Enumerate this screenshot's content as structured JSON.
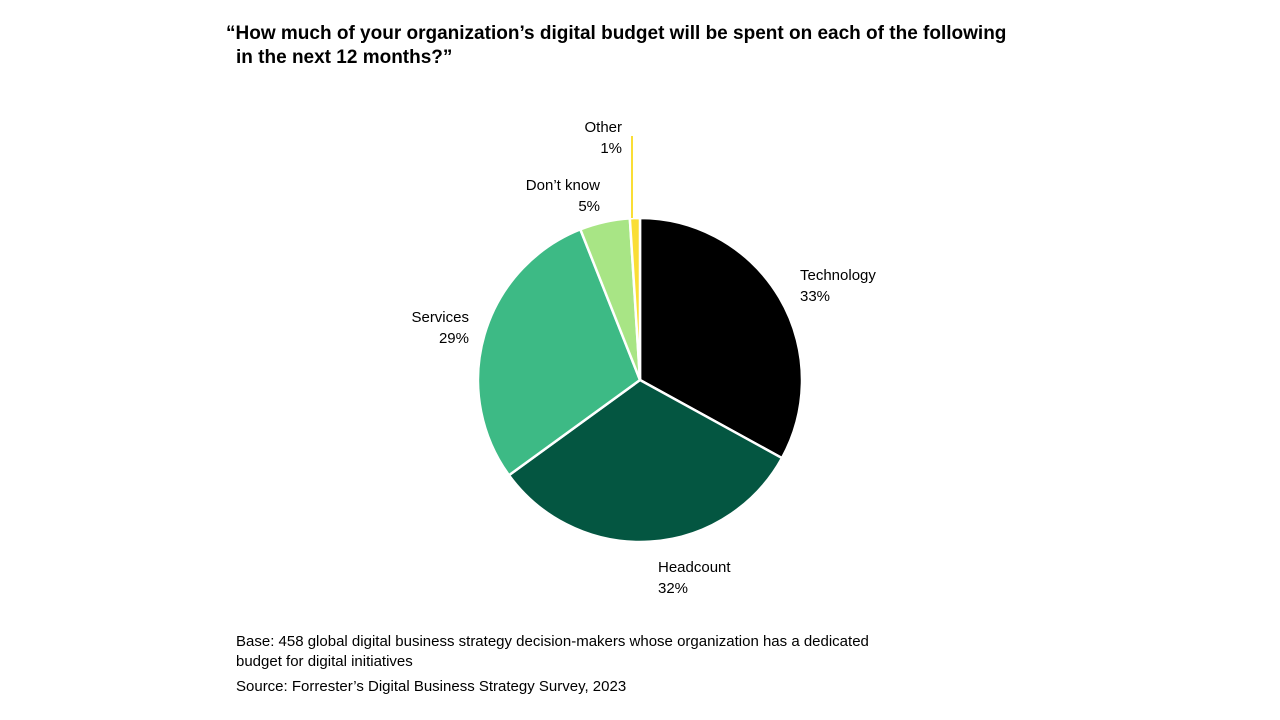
{
  "title": {
    "line1": "“How much of your organization’s digital budget will be spent on each of the following",
    "line2": "in the next 12 months?”"
  },
  "chart_data": {
    "type": "pie",
    "title": "“How much of your organization’s digital budget will be spent on each of the following in the next 12 months?”",
    "slices": [
      {
        "label": "Technology",
        "value": 33,
        "display": "33%",
        "color": "#000000"
      },
      {
        "label": "Headcount",
        "value": 32,
        "display": "32%",
        "color": "#045641"
      },
      {
        "label": "Services",
        "value": 29,
        "display": "29%",
        "color": "#3dba85"
      },
      {
        "label": "Don’t know",
        "value": 5,
        "display": "5%",
        "color": "#a8e585"
      },
      {
        "label": "Other",
        "value": 1,
        "display": "1%",
        "color": "#fade35"
      }
    ],
    "start": "12 o'clock",
    "direction": "clockwise"
  },
  "footer": {
    "base_line1": "Base: 458 global digital business strategy decision-makers whose organization has a dedicated",
    "base_line2": "budget for digital initiatives",
    "source": "Source: Forrester’s Digital Business Strategy Survey, 2023"
  }
}
